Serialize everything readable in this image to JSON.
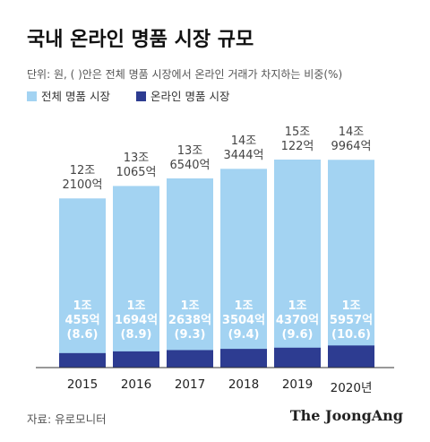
{
  "chart_data": {
    "type": "bar",
    "title": "국내 온라인 명품 시장 규모",
    "subtitle": "단위: 원, ( )안은 전체 명품 시장에서 온라인 거래가 차지하는 비중(%)",
    "categories": [
      "2015",
      "2016",
      "2017",
      "2018",
      "2019",
      "2020년"
    ],
    "series": [
      {
        "name": "전체 명품 시장",
        "color": "#a3d3f2",
        "values": [
          122100,
          131065,
          136540,
          143444,
          150122,
          149964
        ],
        "value_labels": [
          "12조\n2100억",
          "13조\n1065억",
          "13조\n6540억",
          "14조\n3444억",
          "15조\n122억",
          "14조\n9964억"
        ]
      },
      {
        "name": "온라인 명품 시장",
        "color": "#2d3c91",
        "values": [
          10455,
          11694,
          12638,
          13504,
          14370,
          15957
        ],
        "value_labels": [
          "1조\n455억",
          "1조\n1694억",
          "1조\n2638억",
          "1조\n3504억",
          "1조\n4370억",
          "1조\n5957억"
        ]
      }
    ],
    "online_share": {
      "values": [
        8.6,
        8.9,
        9.3,
        9.4,
        9.6,
        10.6
      ],
      "value_labels": [
        "(8.6)",
        "(8.9)",
        "(9.3)",
        "(9.4)",
        "(9.6)",
        "(10.6)"
      ]
    },
    "source": "자료: 유로모니터",
    "brand": "The JoongAng"
  }
}
